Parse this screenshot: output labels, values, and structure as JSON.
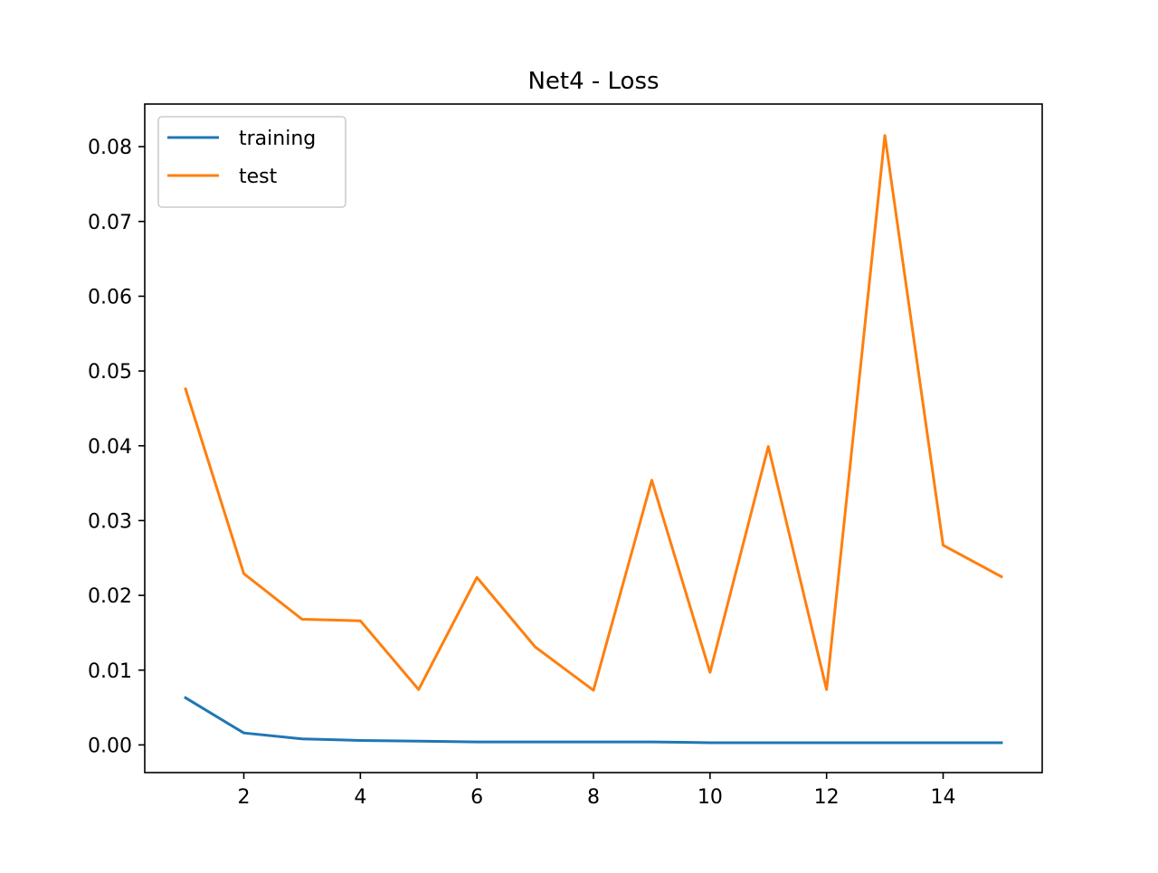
{
  "chart_data": {
    "type": "line",
    "title": "Net4 - Loss",
    "xlabel": "",
    "ylabel": "",
    "x": [
      1,
      2,
      3,
      4,
      5,
      6,
      7,
      8,
      9,
      10,
      11,
      12,
      13,
      14,
      15
    ],
    "series": [
      {
        "name": "training",
        "color": "#1f77b4",
        "values": [
          0.0063,
          0.0016,
          0.0008,
          0.0006,
          0.0005,
          0.0004,
          0.0004,
          0.0004,
          0.0004,
          0.0003,
          0.0003,
          0.0003,
          0.0003,
          0.0003,
          0.0003
        ]
      },
      {
        "name": "test",
        "color": "#ff7f0e",
        "values": [
          0.0476,
          0.0229,
          0.0168,
          0.0166,
          0.0074,
          0.0224,
          0.0131,
          0.0073,
          0.0354,
          0.0097,
          0.0399,
          0.0074,
          0.0815,
          0.0267,
          0.0225
        ]
      }
    ],
    "xlim": [
      0.3,
      15.7
    ],
    "ylim": [
      -0.0037,
      0.0857
    ],
    "xticks": [
      2,
      4,
      6,
      8,
      10,
      12,
      14
    ],
    "xtick_labels": [
      "2",
      "4",
      "6",
      "8",
      "10",
      "12",
      "14"
    ],
    "yticks": [
      0.0,
      0.01,
      0.02,
      0.03,
      0.04,
      0.05,
      0.06,
      0.07,
      0.08
    ],
    "ytick_labels": [
      "0.00",
      "0.01",
      "0.02",
      "0.03",
      "0.04",
      "0.05",
      "0.06",
      "0.07",
      "0.08"
    ],
    "grid": false,
    "legend_position": "upper-left"
  }
}
